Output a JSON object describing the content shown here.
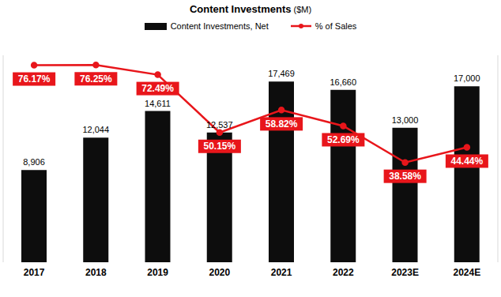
{
  "chart_data": {
    "type": "bar",
    "title": "Content Investments ($M)",
    "categories": [
      "2017",
      "2018",
      "2019",
      "2020",
      "2021",
      "2022",
      "2023E",
      "2024E"
    ],
    "series": [
      {
        "name": "Content Investments, Net",
        "type": "bar",
        "color": "#0d0d0d",
        "values": [
          8906,
          12044,
          14611,
          12537,
          17469,
          16660,
          13000,
          17000
        ],
        "value_labels": [
          "8,906",
          "12,044",
          "14,611",
          "12,537",
          "17,469",
          "16,660",
          "13,000",
          "17,000"
        ]
      },
      {
        "name": "% of Sales",
        "type": "line",
        "axis": "y2",
        "color": "#e8161b",
        "marker": "circle",
        "values": [
          76.17,
          76.25,
          72.49,
          50.15,
          58.82,
          52.69,
          38.58,
          44.44
        ],
        "value_labels": [
          "76.17%",
          "76.25%",
          "72.49%",
          "50.15%",
          "58.82%",
          "52.69%",
          "38.58%",
          "44.44%"
        ]
      }
    ],
    "ylim": [
      0,
      20000
    ],
    "y2lim": [
      0,
      80
    ],
    "data_labels": true,
    "legend": "top",
    "tick_labels": "x",
    "grid": false
  }
}
